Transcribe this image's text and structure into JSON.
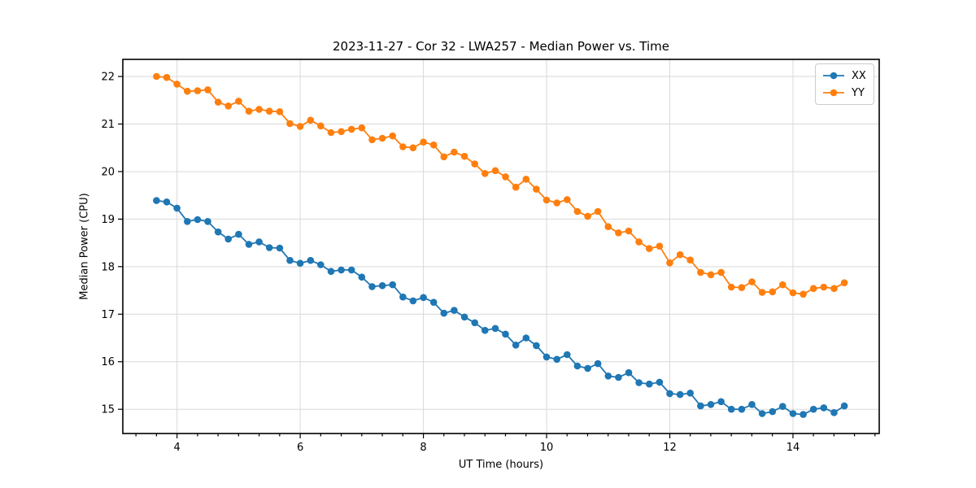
{
  "chart_data": {
    "type": "line",
    "title": "2023-11-27 - Cor 32 - LWA257 - Median Power vs. Time",
    "xlabel": "UT Time (hours)",
    "ylabel": "Median Power (CPU)",
    "xlim": [
      3.12,
      15.4
    ],
    "ylim": [
      14.49,
      22.36
    ],
    "xticks": [
      4,
      6,
      8,
      10,
      12,
      14
    ],
    "yticks": [
      15,
      16,
      17,
      18,
      19,
      20,
      21,
      22
    ],
    "minor_xtick_step": 0.3333,
    "grid": true,
    "grid_color": "#d9d9d9",
    "legend_position": "upper right",
    "x": [
      3.667,
      3.833,
      4.0,
      4.167,
      4.333,
      4.5,
      4.667,
      4.833,
      5.0,
      5.167,
      5.333,
      5.5,
      5.667,
      5.833,
      6.0,
      6.167,
      6.333,
      6.5,
      6.667,
      6.833,
      7.0,
      7.167,
      7.333,
      7.5,
      7.667,
      7.833,
      8.0,
      8.167,
      8.333,
      8.5,
      8.667,
      8.833,
      9.0,
      9.167,
      9.333,
      9.5,
      9.667,
      9.833,
      10.0,
      10.167,
      10.333,
      10.5,
      10.667,
      10.833,
      11.0,
      11.167,
      11.333,
      11.5,
      11.667,
      11.833,
      12.0,
      12.167,
      12.333,
      12.5,
      12.667,
      12.833,
      13.0,
      13.167,
      13.333,
      13.5,
      13.667,
      13.833,
      14.0,
      14.167,
      14.333,
      14.5,
      14.667,
      14.833
    ],
    "series": [
      {
        "name": "XX",
        "color": "#1f77b4",
        "values": [
          19.39,
          19.36,
          19.23,
          18.95,
          18.99,
          18.95,
          18.73,
          18.58,
          18.68,
          18.47,
          18.52,
          18.4,
          18.39,
          18.13,
          18.07,
          18.13,
          18.04,
          17.9,
          17.93,
          17.93,
          17.78,
          17.58,
          17.6,
          17.62,
          17.36,
          17.28,
          17.35,
          17.25,
          17.02,
          17.08,
          16.94,
          16.82,
          16.66,
          16.7,
          16.58,
          16.35,
          16.5,
          16.34,
          16.1,
          16.05,
          16.15,
          15.91,
          15.86,
          15.96,
          15.7,
          15.67,
          15.77,
          15.56,
          15.53,
          15.57,
          15.33,
          15.31,
          15.34,
          15.07,
          15.1,
          15.16,
          15.0,
          15.0,
          15.1,
          14.91,
          14.95,
          15.06,
          14.91,
          14.89,
          15.0,
          15.03,
          14.93,
          15.07
        ]
      },
      {
        "name": "YY",
        "color": "#ff7f0e",
        "values": [
          22.0,
          21.98,
          21.84,
          21.69,
          21.7,
          21.72,
          21.46,
          21.38,
          21.48,
          21.27,
          21.31,
          21.27,
          21.26,
          21.01,
          20.95,
          21.08,
          20.96,
          20.82,
          20.84,
          20.89,
          20.92,
          20.67,
          20.7,
          20.75,
          20.52,
          20.5,
          20.62,
          20.56,
          20.31,
          20.41,
          20.32,
          20.16,
          19.96,
          20.02,
          19.89,
          19.67,
          19.84,
          19.63,
          19.4,
          19.34,
          19.41,
          19.16,
          19.06,
          19.16,
          18.84,
          18.71,
          18.75,
          18.52,
          18.38,
          18.43,
          18.08,
          18.25,
          18.14,
          17.88,
          17.83,
          17.88,
          17.57,
          17.56,
          17.68,
          17.46,
          17.47,
          17.62,
          17.45,
          17.42,
          17.54,
          17.57,
          17.54,
          17.66
        ]
      }
    ]
  }
}
